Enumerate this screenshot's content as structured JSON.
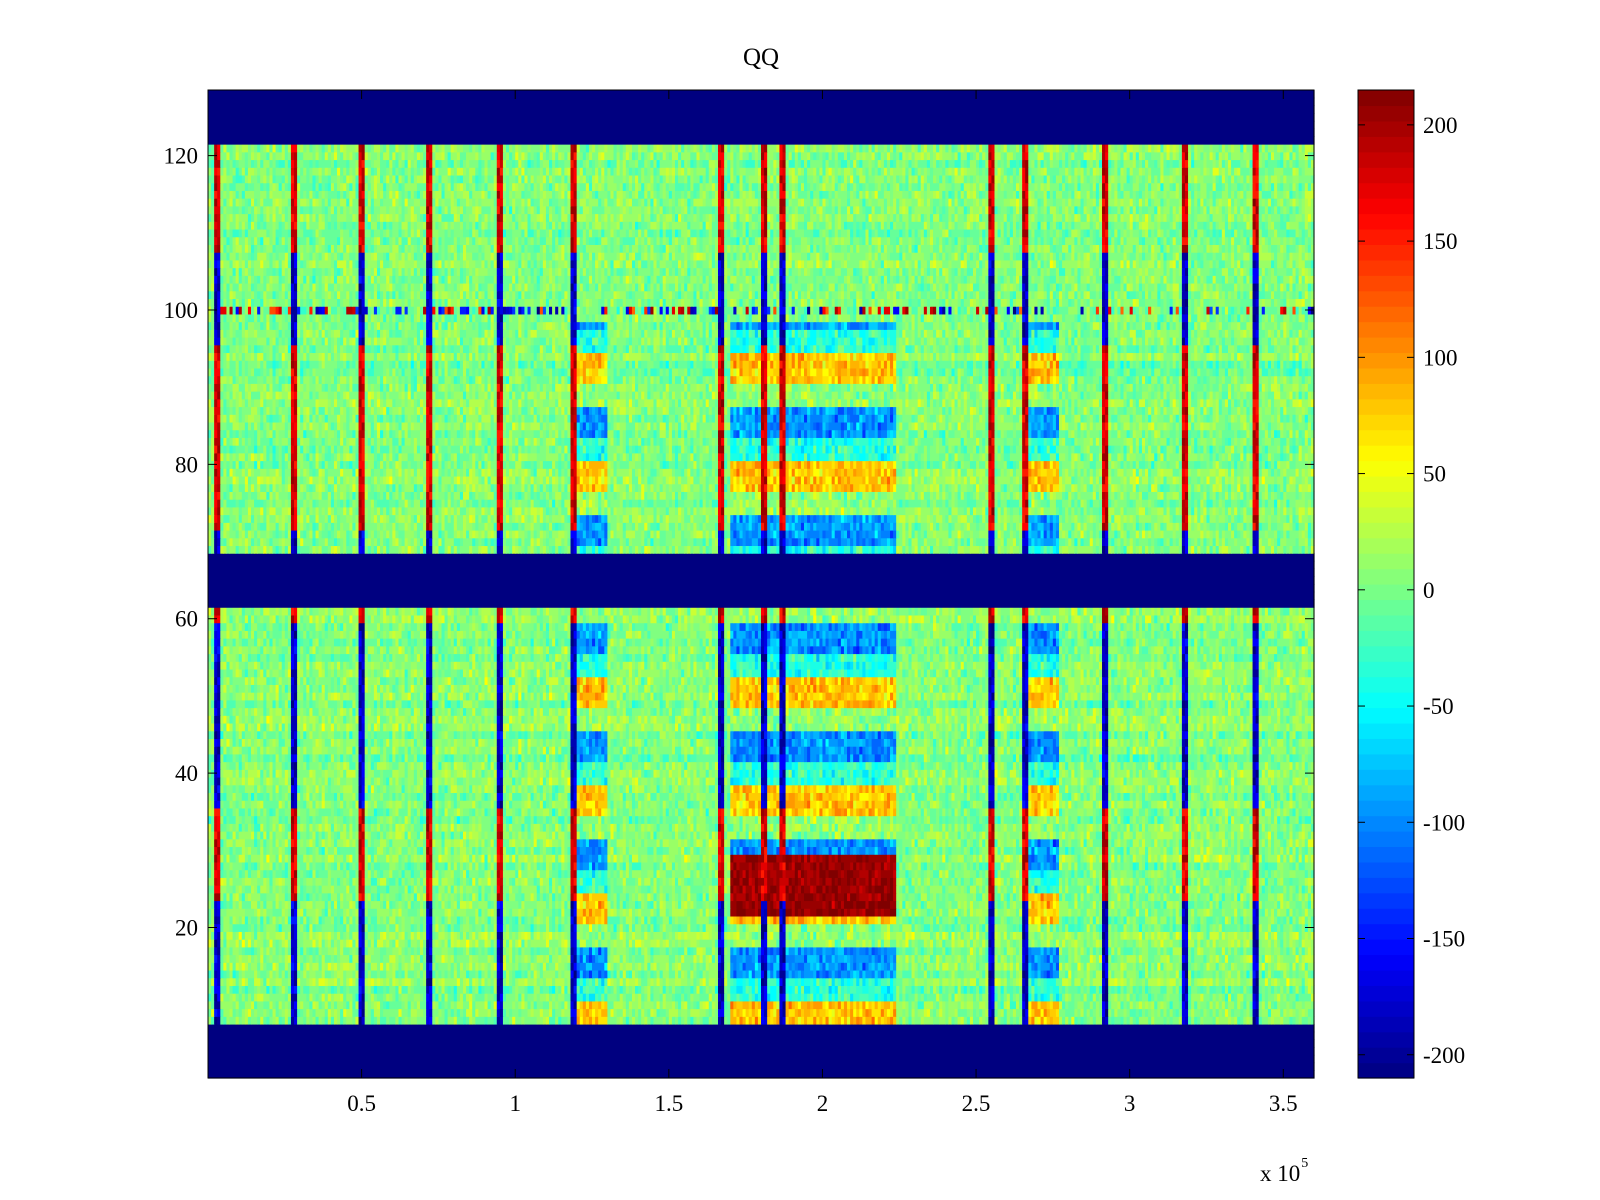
{
  "chart_data": {
    "type": "heatmap",
    "title": "QQ",
    "xlabel": "",
    "ylabel": "",
    "x_scale_multiplier": {
      "prefix": "x 10",
      "exponent": "5"
    },
    "xlim": [
      0,
      3.6
    ],
    "ylim": [
      0.5,
      128.5
    ],
    "x_ticks": [
      0.5,
      1,
      1.5,
      2,
      2.5,
      3,
      3.5
    ],
    "x_tick_labels": [
      "0.5",
      "1",
      "1.5",
      "2",
      "2.5",
      "3",
      "3.5"
    ],
    "y_ticks": [
      20,
      40,
      60,
      80,
      100,
      120
    ],
    "y_tick_labels": [
      "20",
      "40",
      "60",
      "80",
      "100",
      "120"
    ],
    "colormap": "jet",
    "clim": [
      -210,
      215
    ],
    "colorbar": {
      "ticks": [
        200,
        150,
        100,
        50,
        0,
        -50,
        -100,
        -150,
        -200
      ],
      "tick_labels": [
        "200",
        "150",
        "100",
        "50",
        "0",
        "-50",
        "-100",
        "-150",
        "-200"
      ]
    },
    "masked_row_bands": [
      {
        "y_from": 121.5,
        "y_to": 128.5,
        "value": -210
      },
      {
        "y_from": 61.5,
        "y_to": 68.5,
        "value": -210
      },
      {
        "y_from": 0.5,
        "y_to": 7.5,
        "value": -210
      }
    ],
    "vertical_stripe_columns_x": [
      0.03,
      0.28,
      0.5,
      0.72,
      0.95,
      1.19,
      1.67,
      1.81,
      1.87,
      2.55,
      2.66,
      2.92,
      3.18,
      3.41
    ],
    "activity_blocks": [
      {
        "x_from": 1.2,
        "x_to": 1.3,
        "y_from": 8,
        "y_to": 98,
        "pattern": "alternating blue / orange row bands"
      },
      {
        "x_from": 1.7,
        "x_to": 2.24,
        "y_from": 8,
        "y_to": 98,
        "pattern": "alternating blue / orange row bands"
      },
      {
        "x_from": 2.66,
        "x_to": 2.77,
        "y_from": 8,
        "y_to": 98,
        "pattern": "alternating blue / orange row bands"
      }
    ],
    "strong_positive_band": {
      "x_from": 1.7,
      "x_to": 2.24,
      "y_from": 22,
      "y_to": 29,
      "value": 205
    },
    "noisy_row_y": 100,
    "background_mean": 5,
    "grid": false,
    "legend": "none"
  }
}
